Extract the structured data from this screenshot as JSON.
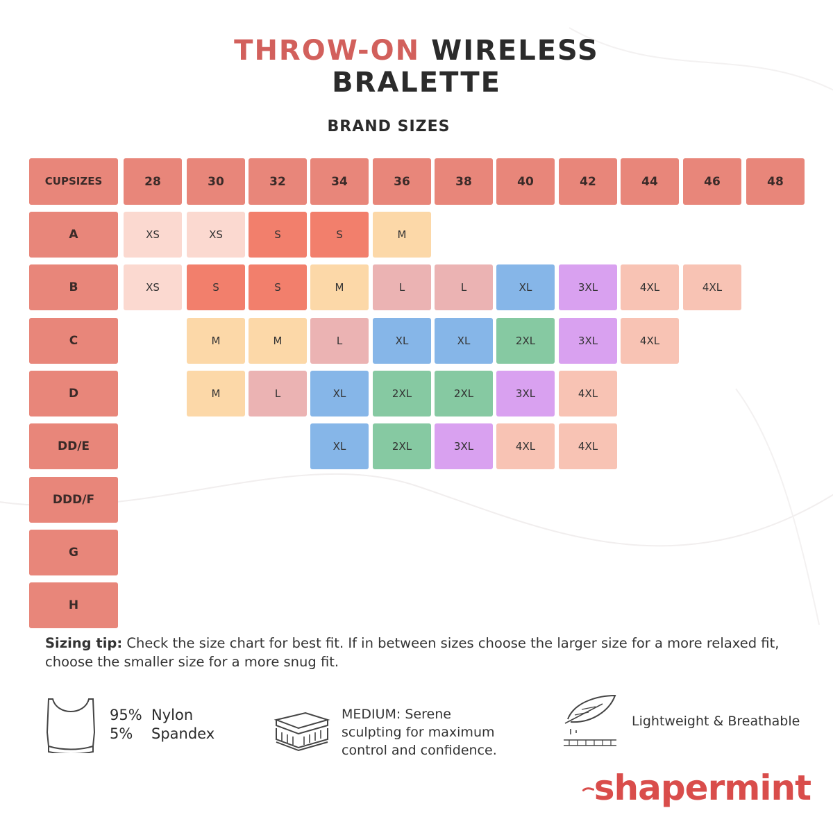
{
  "title": {
    "accent": "THROW-ON",
    "rest_line1": "WIRELESS",
    "line2": "BRALETTE"
  },
  "subtitle": "BRAND SIZES",
  "chart_data": {
    "type": "table",
    "corner_header": [
      "CUP",
      "SIZES"
    ],
    "band_sizes": [
      "28",
      "30",
      "32",
      "34",
      "36",
      "38",
      "40",
      "42",
      "44",
      "46",
      "48"
    ],
    "cup_sizes": [
      "A",
      "B",
      "C",
      "D",
      "DD/E",
      "DDD/F",
      "G",
      "H"
    ],
    "rows": [
      [
        "XS",
        "XS",
        "S",
        "S",
        "M",
        null,
        null,
        null,
        null,
        null,
        null
      ],
      [
        "XS",
        "S",
        "S",
        "M",
        "L",
        "L",
        "XL",
        "3XL",
        "4XL",
        "4XL",
        null
      ],
      [
        null,
        "M",
        "M",
        "L",
        "XL",
        "XL",
        "2XL",
        "3XL",
        "4XL",
        null,
        null
      ],
      [
        null,
        "M",
        "L",
        "XL",
        "2XL",
        "2XL",
        "3XL",
        "4XL",
        null,
        null,
        null
      ],
      [
        null,
        null,
        null,
        "XL",
        "2XL",
        "3XL",
        "4XL",
        "4XL",
        null,
        null,
        null
      ],
      [
        null,
        null,
        null,
        null,
        null,
        null,
        null,
        null,
        null,
        null,
        null
      ],
      [
        null,
        null,
        null,
        null,
        null,
        null,
        null,
        null,
        null,
        null,
        null
      ],
      [
        null,
        null,
        null,
        null,
        null,
        null,
        null,
        null,
        null,
        null,
        null
      ]
    ],
    "size_colors": {
      "XS": "#fbd9d0",
      "S": "#f27f6c",
      "M": "#fcd8a8",
      "L": "#ebb3b3",
      "XL": "#86b6e8",
      "2XL": "#86c9a2",
      "3XL": "#d9a1f0",
      "4XL": "#f8c3b4"
    },
    "header_color": "#e8867a"
  },
  "tip": {
    "label": "Sizing tip:",
    "text": " Check the size chart for best fit. If in between sizes choose the larger size for a more relaxed fit, choose the smaller size for a more snug fit."
  },
  "features": {
    "fabric": {
      "icon": "bralette-icon",
      "pct1": "95%",
      "mat1": "Nylon",
      "pct2": "5%",
      "mat2": "Spandex"
    },
    "compression": {
      "icon": "layers-icon",
      "line1": "MEDIUM: Serene",
      "line2": "sculpting for maximum",
      "line3": "control and confidence."
    },
    "weight": {
      "icon": "feather-icon",
      "text": "Lightweight & Breathable"
    }
  },
  "brand": {
    "name": "shapermint",
    "color": "#d94d4b"
  }
}
